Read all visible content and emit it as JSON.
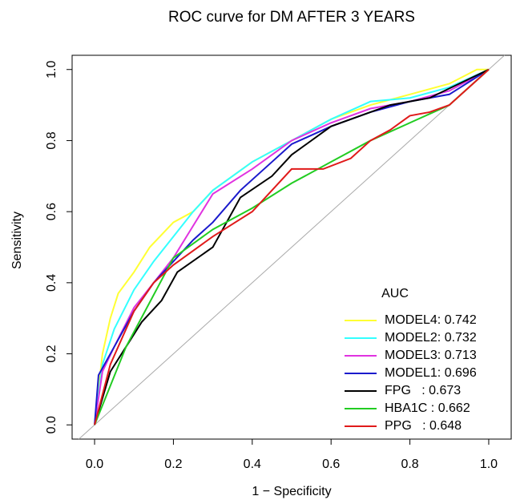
{
  "chart_data": {
    "type": "line",
    "title": "ROC curve for DM AFTER 3 YEARS",
    "xlabel": "1 − Specificity",
    "ylabel": "Sensitivity",
    "xlim": [
      -0.057,
      1.057
    ],
    "ylim": [
      -0.04,
      1.04
    ],
    "xticks": [
      {
        "value": 0,
        "label": "0.0"
      },
      0.2,
      0.4,
      0.6,
      0.8,
      {
        "value": 1,
        "label": "1.0"
      }
    ],
    "yticks": [
      {
        "value": 0,
        "label": "0.0"
      },
      0.2,
      0.4,
      0.6,
      0.8,
      {
        "value": 1,
        "label": "1.0"
      }
    ],
    "legend_title": "AUC",
    "legend": "bottomright",
    "reference_color": "#aaaaaa",
    "series": [
      {
        "name": "MODEL4: 0.742",
        "color": "#ffff33",
        "x": [
          0,
          0.01,
          0.02,
          0.04,
          0.06,
          0.1,
          0.14,
          0.2,
          0.25,
          0.3,
          0.35,
          0.4,
          0.5,
          0.6,
          0.7,
          0.8,
          0.9,
          0.97,
          1
        ],
        "values": [
          0,
          0.1,
          0.2,
          0.3,
          0.37,
          0.43,
          0.5,
          0.57,
          0.6,
          0.66,
          0.7,
          0.74,
          0.8,
          0.86,
          0.9,
          0.93,
          0.96,
          1,
          1
        ]
      },
      {
        "name": "MODEL2: 0.732",
        "color": "#33ffff",
        "x": [
          0,
          0.02,
          0.05,
          0.1,
          0.15,
          0.2,
          0.25,
          0.3,
          0.4,
          0.5,
          0.6,
          0.7,
          0.8,
          0.9,
          1
        ],
        "values": [
          0,
          0.17,
          0.27,
          0.38,
          0.46,
          0.53,
          0.6,
          0.66,
          0.74,
          0.8,
          0.86,
          0.91,
          0.92,
          0.95,
          1
        ]
      },
      {
        "name": "MODEL3: 0.713",
        "color": "#e033e0",
        "x": [
          0,
          0.02,
          0.05,
          0.1,
          0.15,
          0.2,
          0.25,
          0.3,
          0.4,
          0.5,
          0.6,
          0.7,
          0.8,
          0.9,
          1
        ],
        "values": [
          0,
          0.15,
          0.22,
          0.33,
          0.4,
          0.47,
          0.56,
          0.65,
          0.72,
          0.8,
          0.85,
          0.89,
          0.91,
          0.94,
          1
        ]
      },
      {
        "name": "MODEL1: 0.696",
        "color": "#1a1acc",
        "x": [
          0,
          0.01,
          0.05,
          0.1,
          0.15,
          0.2,
          0.25,
          0.3,
          0.37,
          0.45,
          0.5,
          0.6,
          0.7,
          0.8,
          0.9,
          1
        ],
        "values": [
          0,
          0.14,
          0.22,
          0.32,
          0.4,
          0.46,
          0.52,
          0.57,
          0.66,
          0.74,
          0.79,
          0.84,
          0.88,
          0.91,
          0.93,
          1
        ]
      },
      {
        "name": "FPG   : 0.673",
        "color": "#000000",
        "x": [
          0,
          0.04,
          0.08,
          0.12,
          0.17,
          0.21,
          0.3,
          0.37,
          0.45,
          0.5,
          0.6,
          0.75,
          0.85,
          1
        ],
        "values": [
          0,
          0.15,
          0.22,
          0.29,
          0.35,
          0.43,
          0.5,
          0.64,
          0.7,
          0.76,
          0.84,
          0.9,
          0.92,
          1
        ]
      },
      {
        "name": "HBA1C : 0.662",
        "color": "#22cc22",
        "x": [
          0,
          0.08,
          0.2,
          0.3,
          0.4,
          0.5,
          0.6,
          0.7,
          0.8,
          0.9,
          0.93,
          1
        ],
        "values": [
          0,
          0.22,
          0.47,
          0.55,
          0.61,
          0.68,
          0.74,
          0.8,
          0.85,
          0.9,
          0.93,
          1
        ]
      },
      {
        "name": "PPG   : 0.648",
        "color": "#e01a1a",
        "x": [
          0,
          0.04,
          0.1,
          0.15,
          0.2,
          0.3,
          0.4,
          0.5,
          0.58,
          0.65,
          0.7,
          0.75,
          0.8,
          0.85,
          0.9,
          1
        ],
        "values": [
          0,
          0.17,
          0.32,
          0.4,
          0.45,
          0.53,
          0.6,
          0.72,
          0.72,
          0.75,
          0.8,
          0.83,
          0.87,
          0.88,
          0.9,
          1
        ]
      }
    ]
  }
}
